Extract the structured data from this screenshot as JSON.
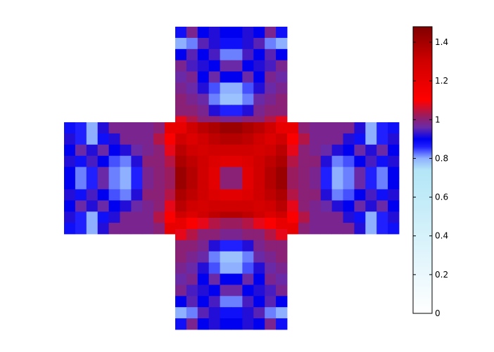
{
  "chart_data": {
    "type": "heatmap",
    "layout": "cross-shaped cube net (top, left, center, right, bottom faces)",
    "face_grid": [
      10,
      10
    ],
    "title": "",
    "xlabel": "",
    "ylabel": "",
    "colorbar": {
      "min": 0,
      "max": 1.48,
      "ticks": [
        0,
        0.2,
        0.4,
        0.6,
        0.8,
        1,
        1.2,
        1.4
      ],
      "tick_labels": [
        "0",
        "0.2",
        "0.4",
        "0.6",
        "0.8",
        "1",
        "1.2",
        "1.4"
      ],
      "colormap": [
        {
          "v": 0.0,
          "c": "#ffffff"
        },
        {
          "v": 0.74,
          "c": "#b3e6f7"
        },
        {
          "v": 0.8,
          "c": "#8fb0ff"
        },
        {
          "v": 0.86,
          "c": "#2020ff"
        },
        {
          "v": 0.9,
          "c": "#0000f0"
        },
        {
          "v": 0.96,
          "c": "#6a2aa8"
        },
        {
          "v": 1.02,
          "c": "#9b1c5e"
        },
        {
          "v": 1.1,
          "c": "#ff0000"
        },
        {
          "v": 1.3,
          "c": "#d00000"
        },
        {
          "v": 1.48,
          "c": "#800000"
        }
      ]
    },
    "faces": [
      {
        "name": "top",
        "values": [
          [
            0.88,
            0.98,
            0.9,
            0.92,
            0.9,
            0.9,
            0.92,
            0.9,
            0.98,
            0.88
          ],
          [
            0.8,
            0.82,
            0.95,
            0.92,
            0.88,
            0.88,
            0.92,
            0.95,
            0.82,
            0.8
          ],
          [
            0.9,
            0.95,
            0.9,
            0.94,
            0.82,
            0.82,
            0.94,
            0.9,
            0.95,
            0.9
          ],
          [
            0.98,
            0.94,
            0.92,
            0.9,
            0.96,
            0.96,
            0.9,
            0.92,
            0.94,
            0.98
          ],
          [
            0.96,
            0.98,
            0.9,
            0.96,
            0.9,
            0.9,
            0.96,
            0.9,
            0.98,
            0.96
          ],
          [
            0.98,
            0.96,
            0.92,
            0.84,
            0.8,
            0.8,
            0.84,
            0.92,
            0.96,
            0.98
          ],
          [
            1.0,
            0.98,
            0.96,
            0.82,
            0.78,
            0.78,
            0.82,
            0.96,
            0.98,
            1.0
          ],
          [
            1.0,
            1.0,
            0.98,
            0.92,
            0.86,
            0.86,
            0.92,
            0.98,
            1.0,
            1.0
          ],
          [
            1.08,
            1.04,
            1.0,
            1.0,
            0.98,
            0.98,
            1.0,
            1.0,
            1.04,
            1.08
          ],
          [
            1.2,
            1.12,
            1.08,
            1.04,
            1.02,
            1.02,
            1.04,
            1.08,
            1.12,
            1.2
          ]
        ]
      },
      {
        "name": "left",
        "values": [
          [
            0.88,
            0.86,
            0.8,
            0.92,
            0.98,
            0.98,
            0.98,
            0.98,
            1.0,
            1.2
          ],
          [
            0.92,
            0.86,
            0.8,
            0.88,
            0.92,
            0.98,
            0.98,
            0.98,
            1.04,
            1.12
          ],
          [
            0.9,
            0.96,
            0.92,
            0.96,
            0.9,
            0.92,
            0.96,
            0.98,
            1.0,
            1.08
          ],
          [
            0.92,
            0.88,
            0.94,
            0.9,
            0.84,
            0.82,
            0.92,
            1.0,
            1.0,
            1.04
          ],
          [
            0.9,
            0.82,
            0.86,
            0.96,
            0.82,
            0.8,
            0.86,
            0.98,
            1.0,
            1.02
          ],
          [
            0.9,
            0.82,
            0.86,
            0.96,
            0.82,
            0.8,
            0.86,
            0.98,
            1.0,
            1.02
          ],
          [
            0.92,
            0.88,
            0.94,
            0.9,
            0.84,
            0.82,
            0.92,
            1.0,
            1.0,
            1.04
          ],
          [
            0.9,
            0.96,
            0.92,
            0.96,
            0.9,
            0.92,
            0.96,
            0.98,
            1.0,
            1.08
          ],
          [
            0.92,
            0.86,
            0.8,
            0.88,
            0.92,
            0.98,
            0.98,
            0.98,
            1.04,
            1.12
          ],
          [
            0.88,
            0.86,
            0.8,
            0.92,
            0.98,
            0.98,
            0.98,
            0.98,
            1.0,
            1.2
          ]
        ]
      },
      {
        "name": "center",
        "values": [
          [
            1.2,
            1.3,
            1.35,
            1.38,
            1.42,
            1.42,
            1.38,
            1.35,
            1.3,
            1.2
          ],
          [
            1.3,
            1.25,
            1.3,
            1.34,
            1.36,
            1.36,
            1.34,
            1.3,
            1.25,
            1.3
          ],
          [
            1.35,
            1.3,
            1.28,
            1.3,
            1.3,
            1.3,
            1.3,
            1.28,
            1.3,
            1.35
          ],
          [
            1.38,
            1.34,
            1.3,
            1.25,
            1.22,
            1.22,
            1.25,
            1.3,
            1.34,
            1.38
          ],
          [
            1.42,
            1.36,
            1.3,
            1.22,
            1.0,
            1.0,
            1.22,
            1.3,
            1.36,
            1.42
          ],
          [
            1.42,
            1.36,
            1.3,
            1.22,
            1.0,
            1.0,
            1.22,
            1.3,
            1.36,
            1.42
          ],
          [
            1.38,
            1.34,
            1.3,
            1.25,
            1.22,
            1.22,
            1.25,
            1.3,
            1.34,
            1.38
          ],
          [
            1.35,
            1.3,
            1.28,
            1.3,
            1.3,
            1.3,
            1.3,
            1.28,
            1.3,
            1.35
          ],
          [
            1.3,
            1.25,
            1.3,
            1.34,
            1.36,
            1.36,
            1.34,
            1.3,
            1.25,
            1.3
          ],
          [
            1.2,
            1.3,
            1.35,
            1.38,
            1.42,
            1.42,
            1.38,
            1.35,
            1.3,
            1.2
          ]
        ]
      },
      {
        "name": "right",
        "values": [
          [
            1.2,
            1.0,
            0.98,
            0.98,
            0.98,
            0.98,
            0.92,
            0.8,
            0.86,
            0.88
          ],
          [
            1.12,
            1.04,
            0.98,
            0.98,
            0.98,
            0.92,
            0.88,
            0.8,
            0.86,
            0.92
          ],
          [
            1.08,
            1.0,
            0.98,
            0.96,
            0.92,
            0.9,
            0.96,
            0.92,
            0.96,
            0.9
          ],
          [
            1.04,
            1.0,
            1.0,
            0.92,
            0.82,
            0.84,
            0.9,
            0.94,
            0.88,
            0.92
          ],
          [
            1.02,
            1.0,
            0.98,
            0.86,
            0.8,
            0.82,
            0.96,
            0.86,
            0.82,
            0.9
          ],
          [
            1.02,
            1.0,
            0.98,
            0.86,
            0.8,
            0.82,
            0.96,
            0.86,
            0.82,
            0.9
          ],
          [
            1.04,
            1.0,
            1.0,
            0.92,
            0.82,
            0.84,
            0.9,
            0.94,
            0.88,
            0.92
          ],
          [
            1.08,
            1.0,
            0.98,
            0.96,
            0.92,
            0.9,
            0.96,
            0.92,
            0.96,
            0.9
          ],
          [
            1.12,
            1.04,
            0.98,
            0.98,
            0.98,
            0.92,
            0.88,
            0.8,
            0.86,
            0.92
          ],
          [
            1.2,
            1.0,
            0.98,
            0.98,
            0.98,
            0.98,
            0.92,
            0.8,
            0.86,
            0.88
          ]
        ]
      },
      {
        "name": "bottom",
        "values": [
          [
            1.2,
            1.12,
            1.08,
            1.04,
            1.02,
            1.02,
            1.04,
            1.08,
            1.12,
            1.2
          ],
          [
            1.08,
            1.04,
            1.0,
            1.0,
            0.98,
            0.98,
            1.0,
            1.0,
            1.04,
            1.08
          ],
          [
            1.0,
            1.0,
            0.98,
            0.92,
            0.86,
            0.86,
            0.92,
            0.98,
            1.0,
            1.0
          ],
          [
            1.0,
            0.98,
            0.96,
            0.82,
            0.78,
            0.78,
            0.82,
            0.96,
            0.98,
            1.0
          ],
          [
            0.98,
            0.96,
            0.92,
            0.84,
            0.8,
            0.8,
            0.84,
            0.92,
            0.96,
            0.98
          ],
          [
            0.96,
            0.98,
            0.9,
            0.96,
            0.9,
            0.9,
            0.96,
            0.9,
            0.98,
            0.96
          ],
          [
            0.98,
            0.94,
            0.92,
            0.9,
            0.96,
            0.96,
            0.9,
            0.92,
            0.94,
            0.98
          ],
          [
            0.9,
            0.95,
            0.9,
            0.94,
            0.82,
            0.82,
            0.94,
            0.9,
            0.95,
            0.9
          ],
          [
            0.8,
            0.82,
            0.95,
            0.92,
            0.88,
            0.88,
            0.92,
            0.95,
            0.82,
            0.8
          ],
          [
            0.88,
            0.98,
            0.9,
            0.92,
            0.9,
            0.9,
            0.92,
            0.9,
            0.98,
            0.88
          ]
        ]
      }
    ]
  }
}
